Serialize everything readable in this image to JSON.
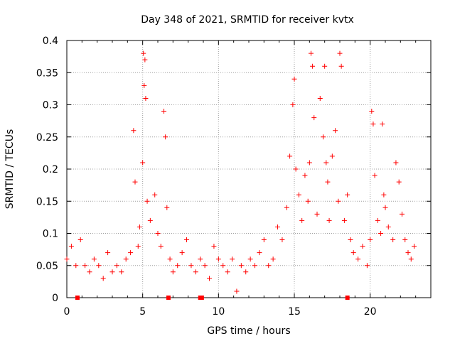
{
  "chart_data": {
    "type": "scatter",
    "title": "Day 348 of 2021, SRMTID for receiver kvtx",
    "xlabel": "GPS time / hours",
    "ylabel": "SRMTID / TECUs",
    "xlim": [
      0,
      24
    ],
    "ylim": [
      0,
      0.4
    ],
    "x_ticks": [
      0,
      5,
      10,
      15,
      20
    ],
    "x_tick_labels": [
      "0",
      "5",
      "10",
      "15",
      "20"
    ],
    "y_ticks": [
      0,
      0.05,
      0.1,
      0.15,
      0.2,
      0.25,
      0.3,
      0.35,
      0.4
    ],
    "y_tick_labels": [
      "0",
      "0.05",
      "0.1",
      "0.15",
      "0.2",
      "0.25",
      "0.3",
      "0.35",
      "0.4"
    ],
    "grid": true,
    "marker": "plus",
    "color": "#ff0000",
    "x_range_observed": [
      0,
      22.9
    ],
    "series": [
      {
        "name": "SRMTID",
        "x": [
          0.0,
          0.3,
          0.6,
          0.9,
          1.2,
          1.5,
          1.8,
          2.1,
          2.4,
          2.7,
          3.0,
          3.3,
          3.6,
          3.9,
          4.2,
          4.4,
          4.5,
          4.7,
          4.8,
          5.0,
          5.05,
          5.1,
          5.15,
          5.2,
          5.3,
          5.5,
          5.8,
          6.0,
          6.2,
          6.4,
          6.5,
          6.6,
          6.8,
          7.0,
          7.3,
          7.6,
          7.9,
          8.2,
          8.5,
          8.8,
          9.1,
          9.4,
          9.7,
          10.0,
          10.3,
          10.6,
          10.9,
          11.2,
          11.5,
          11.8,
          12.1,
          12.4,
          12.7,
          13.0,
          13.3,
          13.6,
          13.9,
          14.2,
          14.5,
          14.7,
          14.9,
          15.0,
          15.1,
          15.3,
          15.5,
          15.7,
          15.9,
          16.0,
          16.1,
          16.2,
          16.3,
          16.5,
          16.7,
          16.9,
          17.0,
          17.1,
          17.2,
          17.3,
          17.5,
          17.7,
          17.9,
          18.0,
          18.1,
          18.3,
          18.5,
          18.7,
          18.9,
          19.2,
          19.5,
          19.8,
          20.0,
          20.1,
          20.2,
          20.3,
          20.5,
          20.7,
          20.8,
          20.9,
          21.0,
          21.2,
          21.5,
          21.7,
          21.9,
          22.1,
          22.3,
          22.5,
          22.7,
          22.9
        ],
        "y": [
          0.06,
          0.08,
          0.05,
          0.09,
          0.05,
          0.04,
          0.06,
          0.05,
          0.03,
          0.07,
          0.04,
          0.05,
          0.04,
          0.06,
          0.07,
          0.26,
          0.18,
          0.08,
          0.11,
          0.21,
          0.38,
          0.33,
          0.37,
          0.31,
          0.15,
          0.12,
          0.16,
          0.1,
          0.08,
          0.29,
          0.25,
          0.14,
          0.06,
          0.04,
          0.05,
          0.07,
          0.09,
          0.05,
          0.04,
          0.06,
          0.05,
          0.03,
          0.08,
          0.06,
          0.05,
          0.04,
          0.06,
          0.01,
          0.05,
          0.04,
          0.06,
          0.05,
          0.07,
          0.09,
          0.05,
          0.06,
          0.11,
          0.09,
          0.14,
          0.22,
          0.3,
          0.34,
          0.2,
          0.16,
          0.12,
          0.19,
          0.15,
          0.21,
          0.38,
          0.36,
          0.28,
          0.13,
          0.31,
          0.25,
          0.36,
          0.21,
          0.18,
          0.12,
          0.22,
          0.26,
          0.15,
          0.38,
          0.36,
          0.12,
          0.16,
          0.09,
          0.07,
          0.06,
          0.08,
          0.05,
          0.09,
          0.29,
          0.27,
          0.19,
          0.12,
          0.1,
          0.27,
          0.16,
          0.14,
          0.11,
          0.09,
          0.21,
          0.18,
          0.13,
          0.09,
          0.07,
          0.06,
          0.08
        ]
      }
    ],
    "gap_markers_x": [
      0.7,
      6.7,
      8.8,
      8.9,
      18.5
    ]
  }
}
